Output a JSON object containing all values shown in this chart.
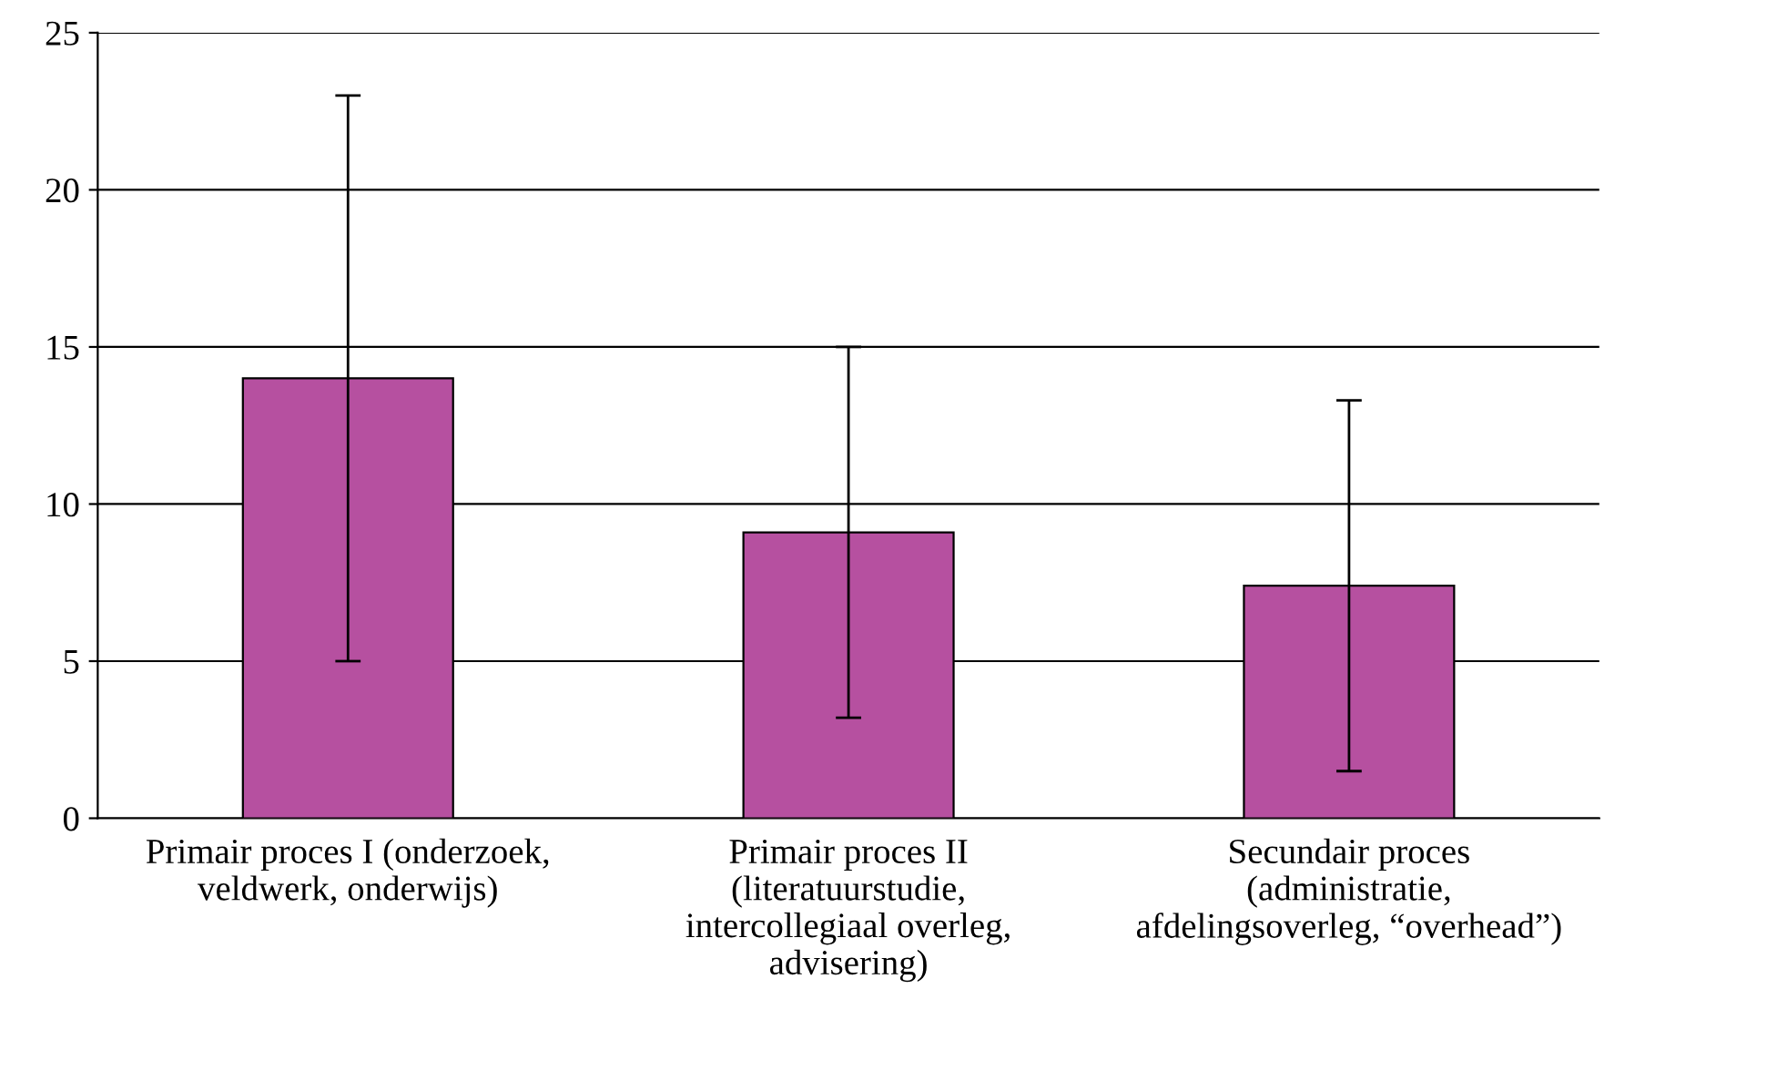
{
  "chart_data": {
    "type": "bar",
    "categories": [
      "Primair proces I (onderzoek,\nveldwerk, onderwijs)",
      "Primair proces II\n(literatuurstudie,\nintercollegiaal overleg,\nadvisering)",
      "Secundair proces\n(administratie,\nafdelingsoverleg, “overhead”)"
    ],
    "values": [
      14.0,
      9.1,
      7.4
    ],
    "errors": [
      9.0,
      5.9,
      5.9
    ],
    "color": "#b650a0",
    "ylim": [
      0,
      25
    ],
    "yticks": [
      0,
      5,
      10,
      15,
      20,
      25
    ],
    "grid": "y"
  }
}
